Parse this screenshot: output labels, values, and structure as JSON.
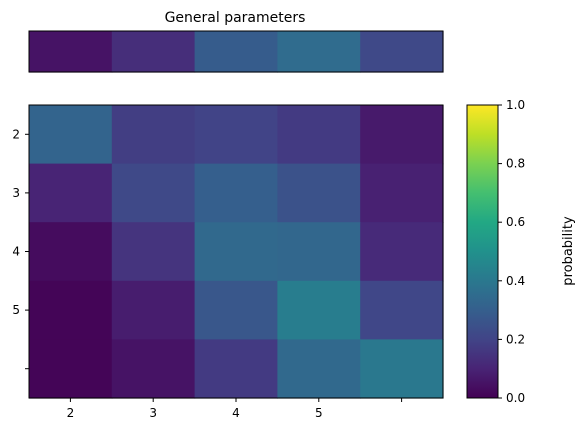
{
  "chart_data": [
    {
      "type": "heatmap",
      "title": "General parameters",
      "xlabel": "",
      "ylabel": "",
      "rows": 1,
      "cols": 5,
      "values": [
        [
          0.05,
          0.13,
          0.29,
          0.35,
          0.22
        ]
      ],
      "xticks": [],
      "yticks": []
    },
    {
      "type": "heatmap",
      "title": "",
      "xlabel": "",
      "ylabel": "",
      "rows": 5,
      "cols": 5,
      "values": [
        [
          0.32,
          0.18,
          0.2,
          0.17,
          0.07
        ],
        [
          0.1,
          0.22,
          0.3,
          0.25,
          0.09
        ],
        [
          0.03,
          0.15,
          0.34,
          0.33,
          0.12
        ],
        [
          0.01,
          0.08,
          0.27,
          0.42,
          0.21
        ],
        [
          0.01,
          0.05,
          0.17,
          0.34,
          0.4
        ]
      ],
      "xticks": [
        {
          "label": "2",
          "col": 0
        },
        {
          "label": "3",
          "col": 1
        },
        {
          "label": "4",
          "col": 2
        },
        {
          "label": "5",
          "col": 3
        },
        {
          "label": "",
          "col": 4
        }
      ],
      "yticks": [
        {
          "label": "2",
          "row": 0
        },
        {
          "label": "3",
          "row": 1
        },
        {
          "label": "4",
          "row": 2
        },
        {
          "label": "5",
          "row": 3
        },
        {
          "label": "",
          "row": 4
        }
      ]
    }
  ],
  "colorbar": {
    "label": "probability",
    "colormap": "viridis",
    "range": [
      0.0,
      1.0
    ],
    "ticks": [
      "0.0",
      "0.2",
      "0.4",
      "0.6",
      "0.8",
      "1.0"
    ]
  }
}
